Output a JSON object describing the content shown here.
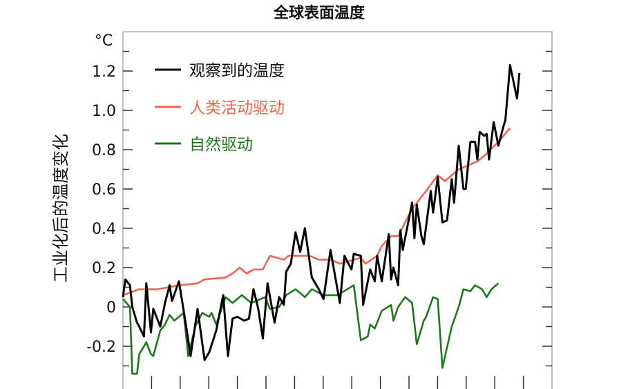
{
  "chart_data": {
    "type": "line",
    "title": "全球表面温度",
    "ylabel": "工业化后的温度变化",
    "yunit": "°C",
    "ylim": [
      -0.4,
      1.4
    ],
    "xlim": [
      1850,
      2034
    ],
    "yticks": [
      -0.2,
      0,
      0.2,
      0.4,
      0.6,
      0.8,
      1.0,
      1.2
    ],
    "ytick_labels": [
      "-0.2",
      "0",
      "0.2",
      "0.4",
      "0.6",
      "0.8",
      "1.0",
      "1.2"
    ],
    "grid": false,
    "legend_position": "top-left",
    "series": [
      {
        "name": "观察到的温度",
        "color": "#000000",
        "x": [
          1850,
          1851,
          1853,
          1854,
          1856,
          1857,
          1859,
          1860,
          1862,
          1863,
          1866,
          1868,
          1870,
          1871,
          1874,
          1877,
          1879,
          1882,
          1885,
          1887,
          1890,
          1893,
          1895,
          1897,
          1899,
          1902,
          1904,
          1906,
          1908,
          1910,
          1912,
          1915,
          1917,
          1919,
          1920,
          1922,
          1924,
          1926,
          1928,
          1931,
          1934,
          1936,
          1939,
          1943,
          1945,
          1948,
          1949,
          1952,
          1953,
          1956,
          1958,
          1959,
          1961,
          1964,
          1965,
          1966,
          1968,
          1969,
          1970,
          1974,
          1975,
          1976,
          1978,
          1979,
          1982,
          1983,
          1985,
          1987,
          1989,
          1991,
          1992,
          1994,
          1996,
          1997,
          1999,
          2001,
          2002,
          2003,
          2005,
          2006,
          2007,
          2009,
          2011,
          2013,
          2014,
          2016,
          2019,
          2020
        ],
        "y": [
          0.05,
          0.14,
          0.11,
          0,
          -0.08,
          -0.1,
          -0.15,
          0.12,
          -0.13,
          -0.01,
          -0.1,
          0.02,
          0.11,
          0.03,
          0.13,
          -0.09,
          -0.25,
          -0.01,
          -0.27,
          -0.23,
          -0.12,
          0.06,
          -0.25,
          -0.06,
          -0.05,
          -0.07,
          -0.06,
          0.09,
          -0.01,
          -0.16,
          0.12,
          -0.08,
          0.05,
          0.01,
          0.18,
          0.22,
          0.38,
          0.28,
          0.4,
          0.15,
          0.09,
          0.04,
          0.29,
          0.02,
          0.26,
          0.19,
          0.27,
          0.26,
          0.01,
          0.19,
          0.13,
          0.26,
          0.13,
          0.37,
          0.14,
          0.2,
          0.11,
          0.39,
          0.29,
          0.53,
          0.35,
          0.52,
          0.36,
          0.32,
          0.59,
          0.48,
          0.66,
          0.43,
          0.44,
          0.65,
          0.53,
          0.82,
          0.6,
          0.6,
          0.84,
          0.84,
          0.75,
          0.89,
          0.87,
          0.88,
          0.75,
          0.94,
          0.82,
          0.91,
          0.95,
          1.23,
          1.06,
          1.19
        ]
      },
      {
        "name": "人类活动驱动",
        "color": "#f0654d",
        "x": [
          1850,
          1857,
          1865,
          1874,
          1882,
          1885,
          1894,
          1897,
          1900,
          1903,
          1906,
          1910,
          1913,
          1919,
          1921,
          1930,
          1934,
          1939,
          1943,
          1952,
          1954,
          1959,
          1961,
          1965,
          1968,
          1974,
          1980,
          1985,
          1988,
          1994,
          1998,
          2002,
          2006,
          2011,
          2016
        ],
        "y": [
          0.06,
          0.09,
          0.09,
          0.11,
          0.12,
          0.14,
          0.15,
          0.17,
          0.2,
          0.17,
          0.19,
          0.19,
          0.26,
          0.24,
          0.26,
          0.26,
          0.24,
          0.24,
          0.22,
          0.25,
          0.22,
          0.26,
          0.31,
          0.36,
          0.36,
          0.5,
          0.59,
          0.67,
          0.64,
          0.7,
          0.72,
          0.74,
          0.78,
          0.84,
          0.91
        ]
      },
      {
        "name": "自然驱动",
        "color": "#1a7a1a",
        "x": [
          1850,
          1853,
          1854,
          1856,
          1857,
          1860,
          1862,
          1863,
          1866,
          1868,
          1870,
          1872,
          1876,
          1878,
          1881,
          1884,
          1887,
          1888,
          1890,
          1894,
          1897,
          1901,
          1905,
          1911,
          1913,
          1917,
          1920,
          1924,
          1928,
          1931,
          1936,
          1942,
          1949,
          1952,
          1955,
          1956,
          1958,
          1961,
          1965,
          1966,
          1968,
          1971,
          1974,
          1976,
          1979,
          1980,
          1983,
          1985,
          1987,
          1991,
          1994,
          1996,
          1999,
          2001,
          2004,
          2006,
          2008,
          2011
        ],
        "y": [
          0.04,
          0.0,
          -0.34,
          -0.34,
          -0.24,
          -0.18,
          -0.24,
          -0.25,
          -0.12,
          -0.09,
          -0.04,
          -0.07,
          -0.03,
          -0.25,
          -0.1,
          -0.03,
          -0.05,
          -0.03,
          -0.09,
          0.05,
          0.02,
          0.06,
          0.02,
          0.05,
          -0.01,
          0.0,
          0.06,
          0.09,
          0.05,
          0.09,
          0.06,
          0.06,
          0.11,
          -0.17,
          -0.15,
          -0.09,
          -0.11,
          -0.02,
          0.01,
          -0.07,
          0.0,
          0.05,
          0.02,
          -0.19,
          -0.07,
          -0.05,
          0.05,
          0.04,
          -0.31,
          -0.1,
          0.0,
          0.09,
          0.08,
          0.11,
          0.09,
          0.05,
          0.09,
          0.12
        ]
      }
    ]
  }
}
